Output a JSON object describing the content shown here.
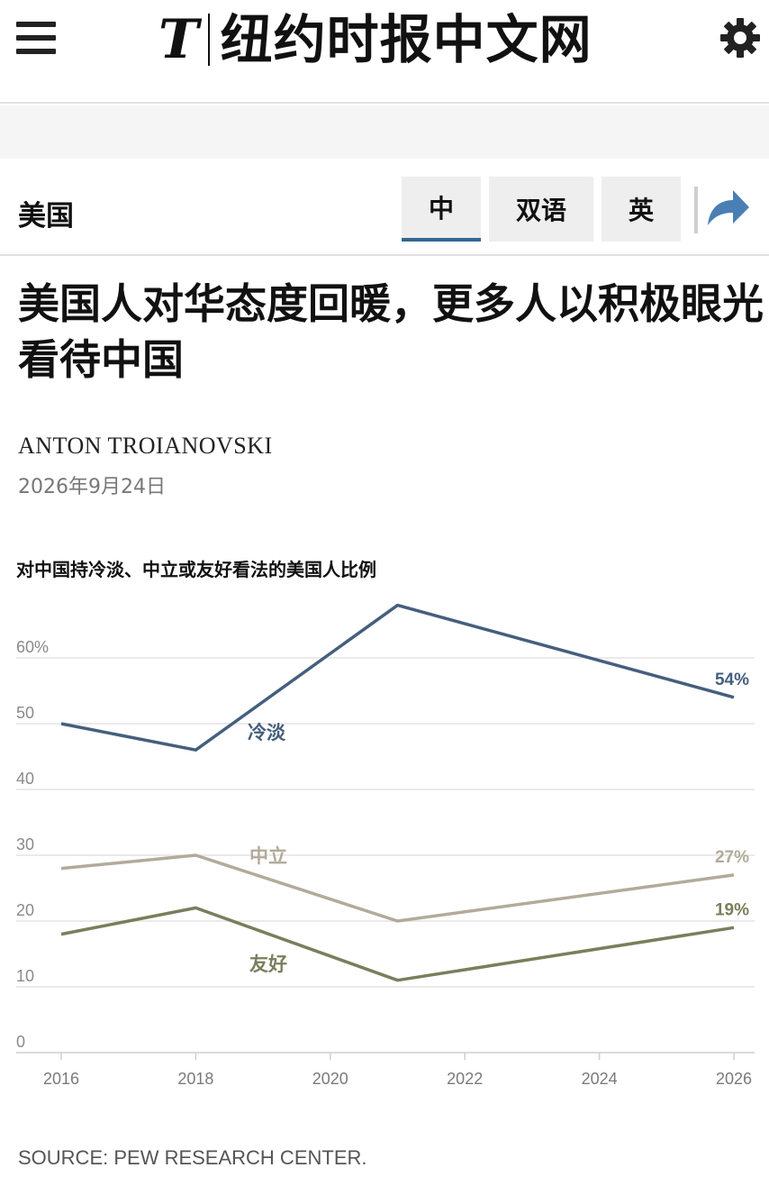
{
  "header": {
    "logo_mark": "T",
    "logo_text": "纽约时报中文网"
  },
  "section": {
    "label": "美国",
    "lang_buttons": [
      "中",
      "双语",
      "英"
    ],
    "active_lang": "中"
  },
  "article": {
    "headline": "美国人对华态度回暖，更多人以积极眼光看待中国",
    "author": "ANTON TROIANOVSKI",
    "date": "2026年9月24日"
  },
  "chart_data": {
    "type": "line",
    "title": "对中国持冷淡、中立或友好看法的美国人比例",
    "xlabel": "",
    "ylabel": "",
    "xlim": [
      2016,
      2026
    ],
    "ylim": [
      0,
      60
    ],
    "x_ticks": [
      "2016",
      "2018",
      "2020",
      "2022",
      "2024",
      "2026"
    ],
    "y_ticks": [
      "0",
      "10",
      "20",
      "30",
      "40",
      "50",
      "60%"
    ],
    "grid": true,
    "series": [
      {
        "name": "冷淡",
        "color": "#455f7d",
        "x": [
          2016,
          2018,
          2021,
          2026
        ],
        "y": [
          50,
          46,
          68,
          54
        ],
        "end_label": "54%"
      },
      {
        "name": "中立",
        "color": "#b1ab99",
        "x": [
          2016,
          2018,
          2021,
          2026
        ],
        "y": [
          28,
          30,
          20,
          27
        ],
        "end_label": "27%"
      },
      {
        "name": "友好",
        "color": "#787f5c",
        "x": [
          2016,
          2018,
          2021,
          2026
        ],
        "y": [
          18,
          22,
          11,
          19
        ],
        "end_label": "19%"
      }
    ],
    "source": "SOURCE: PEW RESEARCH CENTER."
  },
  "colors": {
    "accent": "#326891",
    "share": "#4a7fb5"
  }
}
